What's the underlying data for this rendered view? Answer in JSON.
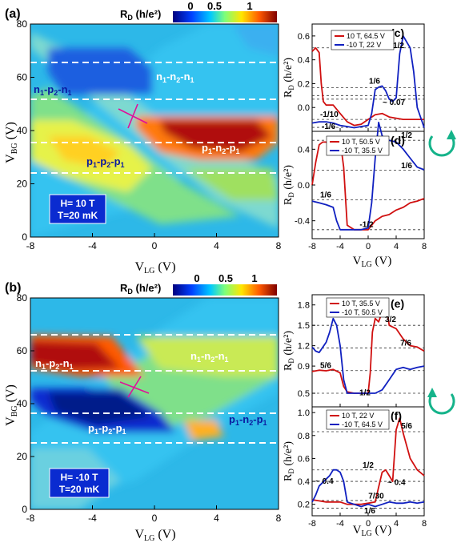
{
  "colors": {
    "cmap": [
      "#00007f",
      "#0040ff",
      "#00c8ff",
      "#7dff7a",
      "#ffe600",
      "#ff5a00",
      "#7f0000"
    ],
    "dash_line": "#ffffff",
    "cross_mark": "#e0109a",
    "red_trace": "#d01010",
    "blue_trace": "#1020c0",
    "arrow": "#15b38a"
  },
  "icons": [
    "clockwise-arrow-icon",
    "counterclockwise-arrow-icon"
  ],
  "chart_data": [
    {
      "panel": "(a)",
      "type": "heatmap",
      "colorbar_label": "R_D (h/e²)",
      "colorbar_ticks": [
        "0",
        "0.5",
        "1"
      ],
      "xlabel": "V_LG (V)",
      "ylabel": "V_BG (V)",
      "xlim": [
        -8,
        8
      ],
      "ylim": [
        0,
        80
      ],
      "xticks": [
        "-8",
        "-4",
        "0",
        "4",
        "8"
      ],
      "yticks": [
        "0",
        "20",
        "40",
        "60",
        "80"
      ],
      "dashed_lines_vbg": [
        66,
        52,
        36,
        24
      ],
      "crossing_point": [
        -1.5,
        47
      ],
      "region_labels": [
        "n1-n2-n1",
        "n1-p2-n1",
        "p1-n2-p1",
        "p1-p2-p1"
      ],
      "condition_box": [
        "H= 10 T",
        "T=20 mK"
      ]
    },
    {
      "panel": "(b)",
      "type": "heatmap",
      "colorbar_label": "R_D (h/e²)",
      "colorbar_ticks": [
        "0",
        "0.5",
        "1"
      ],
      "xlabel": "V_LG (V)",
      "ylabel": "V_BG (V)",
      "xlim": [
        -8,
        8
      ],
      "ylim": [
        0,
        80
      ],
      "xticks": [
        "-8",
        "-4",
        "0",
        "4",
        "8"
      ],
      "yticks": [
        "0",
        "20",
        "40",
        "60",
        "80"
      ],
      "dashed_lines_vbg": [
        66,
        52,
        36,
        24
      ],
      "crossing_point": [
        -1.5,
        45
      ],
      "region_labels": [
        "n1-p2-n1",
        "n1-n2-n1",
        "p1-p2-p1",
        "p1-n2-p1"
      ],
      "condition_box": [
        "H= -10 T",
        "T=20 mK"
      ]
    },
    {
      "panel": "(c)",
      "type": "line",
      "xlabel": "V_LG (V)",
      "ylabel": "R_D (h/e²)",
      "xlim": [
        -8,
        8
      ],
      "ylim": [
        -0.2,
        0.7
      ],
      "yticks": [
        "0.6",
        "0.4",
        "0.2",
        "0.0"
      ],
      "reference_lines": [
        0.5,
        0.1667,
        0.1,
        0.07,
        -0.1,
        -0.1667
      ],
      "annotations": [
        "1/2",
        "1/6",
        "~ 0.07",
        "-1/10",
        "-1/6"
      ],
      "series": [
        {
          "name": "10 T, 64.5 V",
          "color": "red",
          "x": [
            -8,
            -7.5,
            -7,
            -6.7,
            -6.4,
            -6,
            -5,
            -4,
            -3,
            -2,
            -1,
            0,
            1,
            2,
            3,
            4,
            5,
            6,
            7,
            8
          ],
          "values": [
            0.47,
            0.5,
            0.46,
            0.2,
            0.05,
            0.02,
            0.02,
            -0.05,
            -0.12,
            -0.15,
            -0.14,
            -0.1,
            -0.06,
            -0.05,
            -0.08,
            -0.09,
            -0.1,
            -0.1,
            -0.1,
            -0.1
          ]
        },
        {
          "name": "-10 T,  22 V",
          "color": "blue",
          "x": [
            -8,
            -7,
            -6,
            -5,
            -4,
            -3,
            -2,
            -1,
            0,
            0.5,
            1,
            1.5,
            2,
            2.5,
            3,
            3.5,
            4,
            4.5,
            5,
            5.5,
            6,
            6.5,
            7,
            8
          ],
          "values": [
            -0.13,
            -0.12,
            -0.12,
            -0.13,
            -0.15,
            -0.16,
            -0.17,
            -0.16,
            -0.15,
            -0.05,
            0.15,
            0.17,
            0.18,
            0.14,
            0.07,
            0.05,
            0.08,
            0.45,
            0.6,
            0.55,
            0.5,
            0.3,
            0.0,
            -0.17
          ]
        }
      ]
    },
    {
      "panel": "(d)",
      "type": "line",
      "xlabel": "V_LG (V)",
      "ylabel": "R_D (h/e²)",
      "xlim": [
        -8,
        8
      ],
      "ylim": [
        -0.6,
        0.6
      ],
      "yticks": [
        "0.4",
        "0.0",
        "-0.4"
      ],
      "reference_lines": [
        0.5,
        0.1667,
        -0.1667,
        -0.5
      ],
      "annotations": [
        "1/2",
        "1/6",
        "1/6",
        "-1/2"
      ],
      "series": [
        {
          "name": "10 T, 50.5 V",
          "color": "red",
          "x": [
            -8,
            -7.5,
            -7,
            -6.5,
            -6,
            -5.5,
            -5,
            -4.5,
            -4,
            -3.5,
            -3,
            -2,
            -1,
            0,
            0.5,
            1,
            2,
            3,
            4,
            5,
            6,
            7,
            8
          ],
          "values": [
            0.0,
            0.25,
            0.45,
            0.48,
            0.48,
            0.45,
            0.48,
            0.5,
            0.5,
            0.2,
            -0.45,
            -0.5,
            -0.5,
            -0.5,
            -0.45,
            -0.4,
            -0.35,
            -0.33,
            -0.28,
            -0.25,
            -0.2,
            -0.18,
            -0.15
          ]
        },
        {
          "name": "-10 T, 35.5 V",
          "color": "blue",
          "x": [
            -8,
            -7,
            -6,
            -5,
            -4.5,
            -4,
            -3,
            -2,
            -1,
            0,
            0.5,
            1,
            1.5,
            2,
            2.5,
            3,
            4,
            5,
            6,
            7,
            8
          ],
          "values": [
            -0.18,
            -0.2,
            -0.22,
            -0.25,
            -0.4,
            -0.5,
            -0.5,
            -0.5,
            -0.5,
            -0.48,
            -0.2,
            0.3,
            0.7,
            0.55,
            0.5,
            0.5,
            0.48,
            0.4,
            0.3,
            0.2,
            0.17
          ]
        }
      ]
    },
    {
      "panel": "(e)",
      "type": "line",
      "xlabel": "V_LG (V)",
      "ylabel": "R_D (h/e²)",
      "xlim": [
        -8,
        8
      ],
      "ylim": [
        0.3,
        1.95
      ],
      "yticks": [
        "1.8",
        "1.5",
        "1.2",
        "0.9",
        "0.5"
      ],
      "reference_lines": [
        1.5,
        1.1667,
        0.8333,
        0.5
      ],
      "annotations": [
        "3/2",
        "7/6",
        "5/6",
        "1/2"
      ],
      "series": [
        {
          "name": "10 T, 35.5 V",
          "color": "red",
          "x": [
            -8,
            -7,
            -6,
            -5,
            -4,
            -3.5,
            -3,
            -2,
            -1,
            0,
            0.3,
            0.6,
            1,
            1.5,
            2,
            2.5,
            3,
            4,
            5,
            6,
            7,
            8
          ],
          "values": [
            0.82,
            0.84,
            0.83,
            0.85,
            0.8,
            0.6,
            0.52,
            0.5,
            0.5,
            0.5,
            0.8,
            1.4,
            1.6,
            1.55,
            1.7,
            1.85,
            1.5,
            1.45,
            1.3,
            1.2,
            1.18,
            1.12
          ]
        },
        {
          "name": "-10 T, 50.5 V",
          "color": "blue",
          "x": [
            -8,
            -7.5,
            -7,
            -6,
            -5.5,
            -5,
            -4.5,
            -4,
            -3.5,
            -3,
            -2,
            -1,
            0,
            1,
            2,
            3,
            4,
            5,
            6,
            7,
            8
          ],
          "values": [
            1.18,
            1.12,
            1.1,
            1.25,
            1.4,
            1.6,
            1.5,
            1.2,
            0.7,
            0.5,
            0.5,
            0.5,
            0.5,
            0.5,
            0.55,
            0.7,
            0.85,
            0.88,
            0.85,
            0.88,
            0.9
          ]
        }
      ]
    },
    {
      "panel": "(f)",
      "type": "line",
      "xlabel": "V_LG (V)",
      "ylabel": "R_D (h/e²)",
      "xlim": [
        -8,
        8
      ],
      "ylim": [
        0.1,
        1.05
      ],
      "yticks": [
        "1.0",
        "0.8",
        "0.6",
        "0.4",
        "0.2"
      ],
      "reference_lines": [
        0.8333,
        0.5,
        0.4,
        0.2333,
        0.1667
      ],
      "annotations": [
        "5/6",
        "1/2",
        "~ 0.4",
        "~ 0.4",
        "7/30",
        "1/6"
      ],
      "series": [
        {
          "name": "10 T,   22 V",
          "color": "red",
          "x": [
            -8,
            -7,
            -6,
            -5,
            -4,
            -3,
            -2,
            -1,
            0,
            1,
            1.5,
            2,
            2.5,
            3,
            3.5,
            4,
            4.5,
            5,
            6,
            7,
            8
          ],
          "values": [
            0.24,
            0.23,
            0.22,
            0.22,
            0.22,
            0.2,
            0.2,
            0.2,
            0.21,
            0.22,
            0.35,
            0.48,
            0.5,
            0.45,
            0.4,
            0.85,
            0.95,
            0.82,
            0.6,
            0.5,
            0.45
          ]
        },
        {
          "name": "-10 T, 64.5 V",
          "color": "blue",
          "x": [
            -8,
            -7.5,
            -7,
            -6,
            -5.5,
            -5,
            -4.5,
            -4,
            -3.5,
            -3,
            -2,
            -1,
            0,
            1,
            2,
            3,
            4,
            5,
            6,
            7,
            8
          ],
          "values": [
            0.22,
            0.28,
            0.36,
            0.42,
            0.45,
            0.5,
            0.5,
            0.48,
            0.4,
            0.22,
            0.2,
            0.18,
            0.2,
            0.18,
            0.2,
            0.22,
            0.21,
            0.21,
            0.22,
            0.21,
            0.22
          ]
        }
      ]
    }
  ]
}
